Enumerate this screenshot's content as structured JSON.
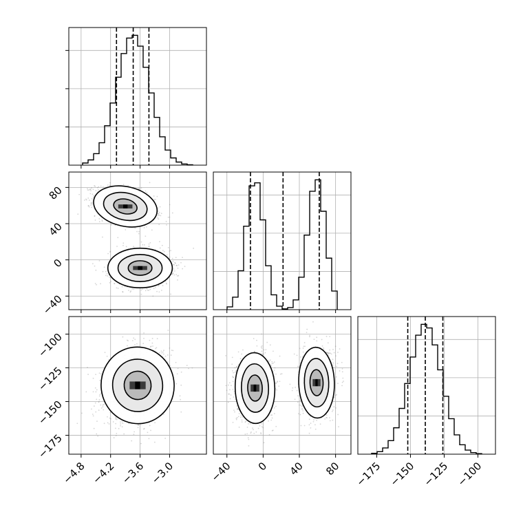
{
  "chart_data": {
    "type": "corner",
    "colors": {
      "line": "#000000",
      "grid": "#b0b0b0",
      "scatter": "#888888"
    },
    "params": [
      {
        "range": [
          -5.05,
          -2.25
        ],
        "ticks": [
          -4.8,
          -4.2,
          -3.6,
          -3.0
        ],
        "tick_labels": [
          "−4.8",
          "−4.2",
          "−3.6",
          "−3.0"
        ],
        "quantiles": [
          -4.08,
          -3.74,
          -3.42
        ],
        "components": [
          {
            "weight": 1.0,
            "mean": -3.74,
            "sd": 0.34
          }
        ]
      },
      {
        "range": [
          -55,
          97
        ],
        "ticks": [
          -40,
          0,
          40,
          80
        ],
        "tick_labels": [
          "−40",
          "0",
          "40",
          "80"
        ],
        "quantiles": [
          -14,
          22,
          62
        ],
        "components": [
          {
            "weight": 0.5,
            "mean": -9,
            "sd": 10
          },
          {
            "weight": 0.5,
            "mean": 59,
            "sd": 10
          }
        ]
      },
      {
        "range": [
          -189,
          -87
        ],
        "ticks": [
          -100,
          -125,
          -150,
          -175
        ],
        "tick_labels": [
          "−100",
          "−125",
          "−150",
          "−175"
        ],
        "quantiles": [
          -152,
          -139,
          -126
        ],
        "components": [
          {
            "weight": 1.0,
            "mean": -139,
            "sd": 12
          }
        ]
      }
    ],
    "clusters_2d": {
      "p0_p1": [
        {
          "x": -3.9,
          "y": 59,
          "sx": 0.3,
          "sy": 10,
          "rho": -0.35
        },
        {
          "x": -3.6,
          "y": -9,
          "sx": 0.3,
          "sy": 10,
          "rho": 0.0
        }
      ],
      "p0_p2": [
        {
          "x": -3.65,
          "y": -138,
          "sx": 0.34,
          "sy": 13,
          "rho": 0.2
        }
      ],
      "p1_p2": [
        {
          "x": -9,
          "y": -140,
          "sx": 10,
          "sy": 12,
          "rho": 0.05
        },
        {
          "x": 59,
          "y": -136,
          "sx": 9,
          "sy": 12,
          "rho": 0.05
        }
      ]
    },
    "histogram": {
      "bins": 20,
      "style": "step"
    },
    "contour_levels_sigma": [
      0.7,
      1.3,
      1.9
    ],
    "grid": true
  }
}
